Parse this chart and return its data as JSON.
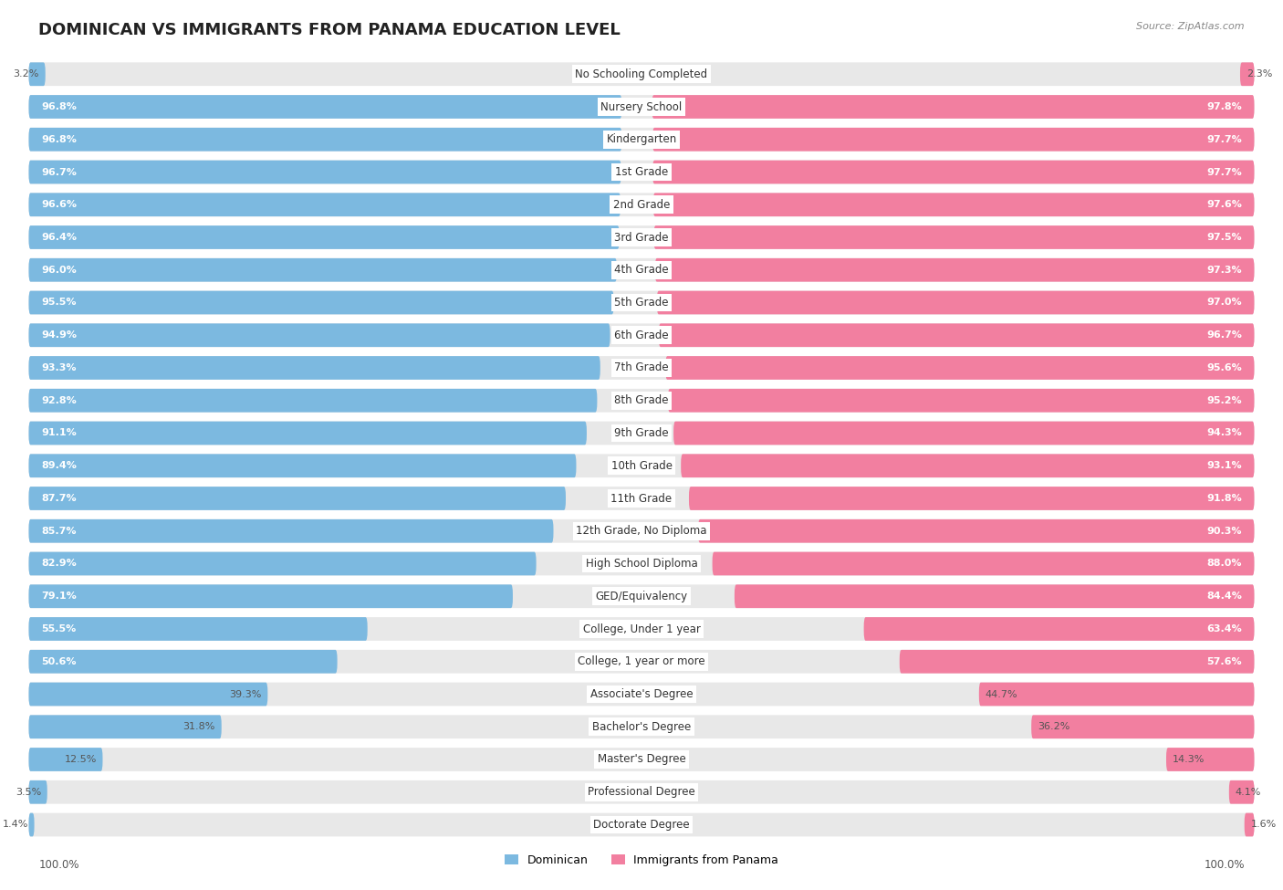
{
  "title": "Dominican vs Immigrants from Panama Education Level",
  "source": "Source: ZipAtlas.com",
  "categories": [
    "No Schooling Completed",
    "Nursery School",
    "Kindergarten",
    "1st Grade",
    "2nd Grade",
    "3rd Grade",
    "4th Grade",
    "5th Grade",
    "6th Grade",
    "7th Grade",
    "8th Grade",
    "9th Grade",
    "10th Grade",
    "11th Grade",
    "12th Grade, No Diploma",
    "High School Diploma",
    "GED/Equivalency",
    "College, Under 1 year",
    "College, 1 year or more",
    "Associate's Degree",
    "Bachelor's Degree",
    "Master's Degree",
    "Professional Degree",
    "Doctorate Degree"
  ],
  "dominican": [
    3.2,
    96.8,
    96.8,
    96.7,
    96.6,
    96.4,
    96.0,
    95.5,
    94.9,
    93.3,
    92.8,
    91.1,
    89.4,
    87.7,
    85.7,
    82.9,
    79.1,
    55.5,
    50.6,
    39.3,
    31.8,
    12.5,
    3.5,
    1.4
  ],
  "panama": [
    2.3,
    97.8,
    97.7,
    97.7,
    97.6,
    97.5,
    97.3,
    97.0,
    96.7,
    95.6,
    95.2,
    94.3,
    93.1,
    91.8,
    90.3,
    88.0,
    84.4,
    63.4,
    57.6,
    44.7,
    36.2,
    14.3,
    4.1,
    1.6
  ],
  "dominican_color": "#7cb9e0",
  "panama_color": "#f27fa0",
  "pill_color": "#e8e8e8",
  "title_fontsize": 13,
  "label_fontsize": 8.5,
  "value_fontsize": 8,
  "legend_fontsize": 9,
  "footer_fontsize": 8.5,
  "bg_color": "#ffffff"
}
